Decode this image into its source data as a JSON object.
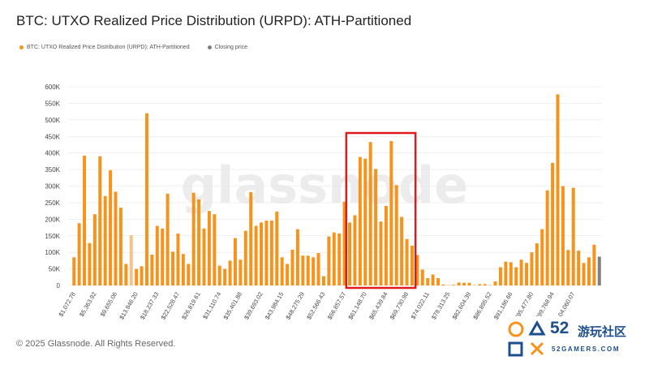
{
  "page": {
    "title": "BTC: UTXO Realized Price Distribution (URPD): ATH-Partitioned",
    "legend": [
      {
        "label": "BTC: UTXO Realized Price Distribution (URPD): ATH-Partitioned",
        "color": "#f7931a"
      },
      {
        "label": "Closing price",
        "color": "#808080"
      }
    ],
    "watermark": "glassnode",
    "footer": "© 2025 Glassnode. All Rights Reserved.",
    "badge": {
      "number": "52",
      "chinese": "游玩社区",
      "english": "52GAMERS.COM"
    }
  },
  "colors": {
    "bar": "#f7931a",
    "bar_light": "#f7c287",
    "closing": "#808080",
    "highlight": "#e01a1a",
    "grid": "#e6e6e6",
    "axis_text": "#444444"
  },
  "chart_data": {
    "type": "bar",
    "title": "BTC: UTXO Realized Price Distribution (URPD): ATH-Partitioned",
    "ylim": [
      0,
      600000
    ],
    "yticks": [
      "0",
      "50K",
      "100K",
      "150K",
      "200K",
      "250K",
      "300K",
      "350K",
      "400K",
      "450K",
      "500K",
      "550K",
      "600K"
    ],
    "ytick_values": [
      0,
      50000,
      100000,
      150000,
      200000,
      250000,
      300000,
      350000,
      400000,
      450000,
      500000,
      550000,
      600000
    ],
    "xtick_labels": [
      "$1,072.78",
      "$5,363.92",
      "$9,655.06",
      "$13,946.20",
      "$18,237.33",
      "$22,528.47",
      "$26,819.61",
      "$31,110.74",
      "$35,401.88",
      "$39,693.02",
      "$43,984.15",
      "$48,275.29",
      "$52,566.43",
      "$56,857.57",
      "$61,148.70",
      "$65,439.84",
      "$69,730.98",
      "$74,022.11",
      "$78,313.25",
      "$82,604.39",
      "$86,895.52",
      "$91,186.66",
      "$95,477.80",
      "$99,768.94",
      "$104,060.07"
    ],
    "series": [
      {
        "name": "BTC: UTXO Realized Price Distribution (URPD): ATH-Partitioned",
        "values": [
          85000,
          188000,
          392000,
          128000,
          215000,
          390000,
          270000,
          348000,
          283000,
          235000,
          65000,
          152000,
          50000,
          58000,
          520000,
          93000,
          180000,
          172000,
          277000,
          102000,
          157000,
          95000,
          65000,
          280000,
          260000,
          172000,
          225000,
          215000,
          60000,
          50000,
          75000,
          143000,
          78000,
          165000,
          282000,
          180000,
          190000,
          196000,
          196000,
          223000,
          85000,
          65000,
          108000,
          170000,
          90000,
          90000,
          85000,
          98000,
          28000,
          148000,
          160000,
          157000,
          253000,
          190000,
          212000,
          388000,
          383000,
          433000,
          352000,
          193000,
          240000,
          436000,
          303000,
          207000,
          140000,
          120000,
          92000,
          48000,
          22000,
          33000,
          22000,
          3000,
          1000,
          2000,
          9000,
          8000,
          8000,
          1000,
          4000,
          4000,
          1000,
          12000,
          55000,
          72000,
          70000,
          55000,
          78000,
          68000,
          100000,
          127000,
          170000,
          287000,
          370000,
          577000,
          300000,
          107000,
          295000,
          105000,
          68000,
          85000,
          123000
        ],
        "light_indices": [
          11
        ],
        "highlight_range": [
          53,
          65
        ]
      },
      {
        "name": "Closing price",
        "bar_index": 101,
        "value": 87000
      }
    ],
    "grid": true,
    "legend_position": "top-left",
    "annotation": "red rectangle highlighting the $56,857–$69,730 price range"
  }
}
